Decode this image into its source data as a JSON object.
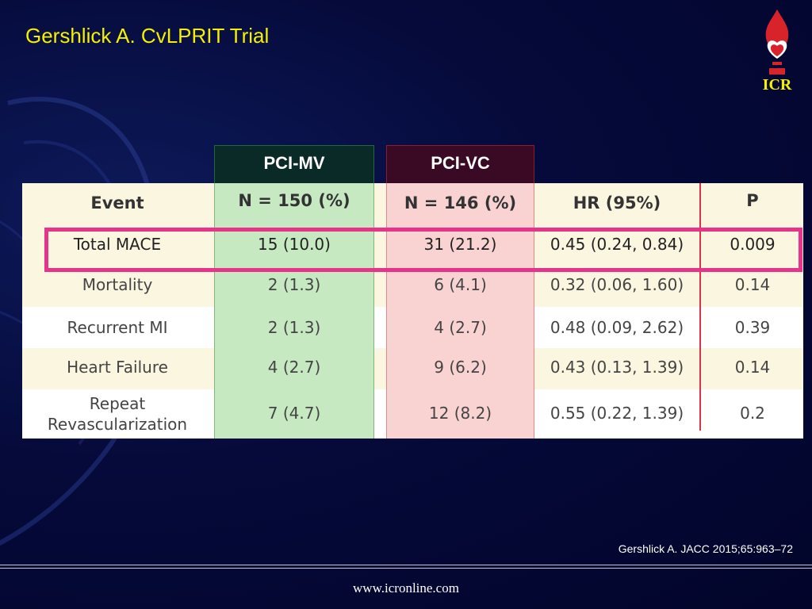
{
  "slide": {
    "title": "Gershlick A. CvLPRIT Trial",
    "logo_text": "ICR",
    "citation": "Gershlick A. JACC 2015;65:963–72",
    "footer_url": "www.icronline.com"
  },
  "table": {
    "group_headers": {
      "pci_mv": "PCI-MV",
      "pci_vc": "PCI-VC"
    },
    "headers": {
      "event": "Event",
      "pci_mv_n": "N = 150 (%)",
      "pci_vc_n": "N = 146 (%)",
      "hr": "HR (95%)",
      "p": "P"
    },
    "rows": [
      {
        "event": "Total MACE",
        "pci_mv": "15 (10.0)",
        "pci_vc": "31 (21.2)",
        "hr": "0.45 (0.24, 0.84)",
        "p": "0.009"
      },
      {
        "event": "Mortality",
        "pci_mv": "2 (1.3)",
        "pci_vc": "6 (4.1)",
        "hr": "0.32 (0.06, 1.60)",
        "p": "0.14"
      },
      {
        "event": "Recurrent MI",
        "pci_mv": "2 (1.3)",
        "pci_vc": "4 (2.7)",
        "hr": "0.48 (0.09, 2.62)",
        "p": "0.39"
      },
      {
        "event": "Heart Failure",
        "pci_mv": "4 (2.7)",
        "pci_vc": "9 (6.2)",
        "hr": "0.43 (0.13, 1.39)",
        "p": "0.14"
      },
      {
        "event_line1": "Repeat",
        "event_line2": "Revascularization",
        "pci_mv": "7 (4.7)",
        "pci_vc": "12 (8.2)",
        "hr": "0.55 (0.22, 1.39)",
        "p": "0.2"
      }
    ]
  },
  "colors": {
    "title": "#f4f000",
    "highlight": "#e8338a",
    "pci_mv_column": "#c6e9c2",
    "pci_vc_column": "#f9d2d2",
    "background": "#050a3a"
  }
}
